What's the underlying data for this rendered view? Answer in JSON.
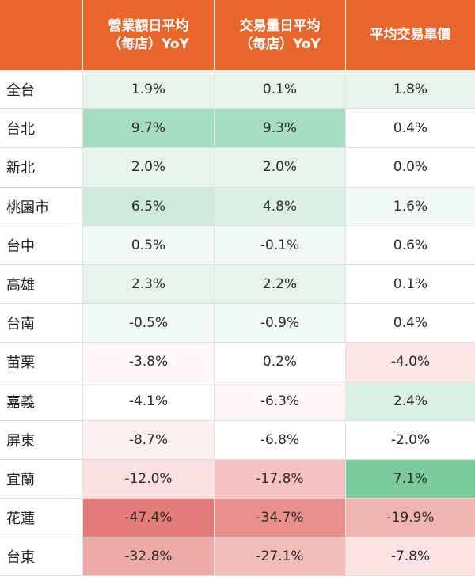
{
  "table": {
    "headers": [
      "",
      "營業額日平均\n（每店）YoY",
      "交易量日平均\n（每店）YoY",
      "平均交易單價"
    ],
    "rows": [
      {
        "region": "全台",
        "cells": [
          {
            "v": "1.9%",
            "c": "#e6f4ec"
          },
          {
            "v": "0.1%",
            "c": "#e6f4ec"
          },
          {
            "v": "1.8%",
            "c": "#e6f4ec"
          }
        ]
      },
      {
        "region": "台北",
        "cells": [
          {
            "v": "9.7%",
            "c": "#a6dcc0"
          },
          {
            "v": "9.3%",
            "c": "#a6dcc0"
          },
          {
            "v": "0.4%",
            "c": "#ffffff"
          }
        ]
      },
      {
        "region": "新北",
        "cells": [
          {
            "v": "2.0%",
            "c": "#e6f4ec"
          },
          {
            "v": "2.0%",
            "c": "#e6f4ec"
          },
          {
            "v": "0.0%",
            "c": "#ffffff"
          }
        ]
      },
      {
        "region": "桃園市",
        "cells": [
          {
            "v": "6.5%",
            "c": "#cdeadb"
          },
          {
            "v": "4.8%",
            "c": "#dbf0e4"
          },
          {
            "v": "1.6%",
            "c": "#f1f9f4"
          }
        ]
      },
      {
        "region": "台中",
        "cells": [
          {
            "v": "0.5%",
            "c": "#f1f9f4"
          },
          {
            "v": "-0.1%",
            "c": "#f1f9f4"
          },
          {
            "v": "0.6%",
            "c": "#ffffff"
          }
        ]
      },
      {
        "region": "高雄",
        "cells": [
          {
            "v": "2.3%",
            "c": "#e6f4ec"
          },
          {
            "v": "2.2%",
            "c": "#e6f4ec"
          },
          {
            "v": "0.1%",
            "c": "#ffffff"
          }
        ]
      },
      {
        "region": "台南",
        "cells": [
          {
            "v": "-0.5%",
            "c": "#f1f9f4"
          },
          {
            "v": "-0.9%",
            "c": "#f1f9f4"
          },
          {
            "v": "0.4%",
            "c": "#ffffff"
          }
        ]
      },
      {
        "region": "苗栗",
        "cells": [
          {
            "v": "-3.8%",
            "c": "#fff7f7"
          },
          {
            "v": "0.2%",
            "c": "#ffffff"
          },
          {
            "v": "-4.0%",
            "c": "#fbe5e5"
          }
        ]
      },
      {
        "region": "嘉義",
        "cells": [
          {
            "v": "-4.1%",
            "c": "#ffffff"
          },
          {
            "v": "-6.3%",
            "c": "#fff7f7"
          },
          {
            "v": "2.4%",
            "c": "#dbf0e4"
          }
        ]
      },
      {
        "region": "屏東",
        "cells": [
          {
            "v": "-8.7%",
            "c": "#fcefef"
          },
          {
            "v": "-6.8%",
            "c": "#ffffff"
          },
          {
            "v": "-2.0%",
            "c": "#ffffff"
          }
        ]
      },
      {
        "region": "宜蘭",
        "cells": [
          {
            "v": "-12.0%",
            "c": "#fbe1e1"
          },
          {
            "v": "-17.8%",
            "c": "#f4c2c0"
          },
          {
            "v": "7.1%",
            "c": "#7ccb9c"
          }
        ]
      },
      {
        "region": "花蓮",
        "cells": [
          {
            "v": "-47.4%",
            "c": "#e47c79"
          },
          {
            "v": "-34.7%",
            "c": "#e98f8c"
          },
          {
            "v": "-19.9%",
            "c": "#f0b4b1"
          }
        ]
      },
      {
        "region": "台東",
        "cells": [
          {
            "v": "-32.8%",
            "c": "#eeaaa7"
          },
          {
            "v": "-27.1%",
            "c": "#f2bcb9"
          },
          {
            "v": "-7.8%",
            "c": "#fae3e2"
          }
        ]
      }
    ]
  }
}
